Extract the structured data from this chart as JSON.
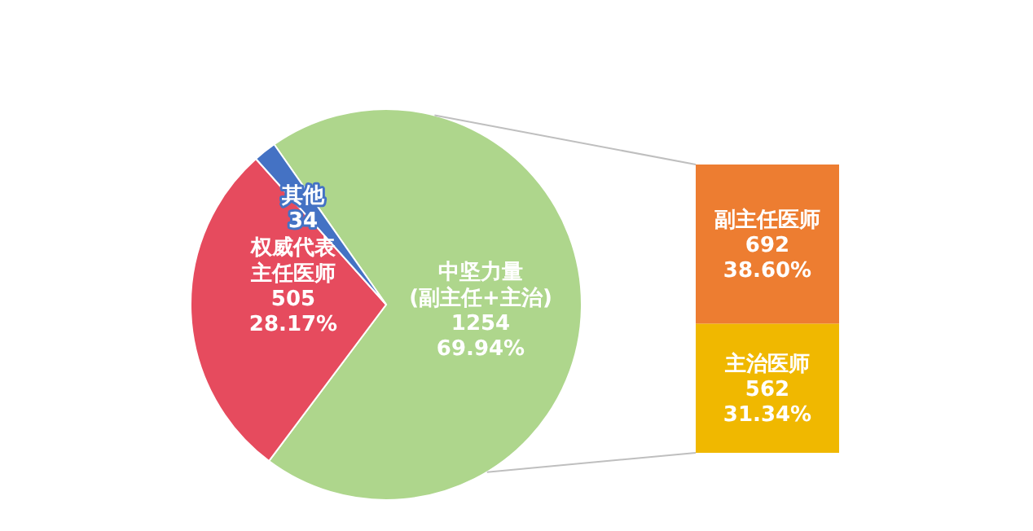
{
  "chart_data": [
    {
      "type": "pie",
      "categories": [
        "中坚力量(副主任+主治)",
        "权威代表主任医师",
        "其他"
      ],
      "values": [
        1254,
        505,
        34
      ],
      "colors": [
        "#aed68c",
        "#e64b5e",
        "#4472c4"
      ],
      "value_labels": [
        "1254 69.94%",
        "505 28.17%",
        "34"
      ]
    },
    {
      "type": "bar",
      "categories": [
        null
      ],
      "stacked": true,
      "series": [
        {
          "name": "主治医师",
          "color": "#f0b800",
          "values": [
            562
          ],
          "value_labels": [
            "562 31.34%"
          ]
        },
        {
          "name": "副主任医师",
          "color": "#ed7d31",
          "values": [
            692
          ],
          "value_labels": [
            "692 38.60%"
          ]
        }
      ]
    }
  ]
}
